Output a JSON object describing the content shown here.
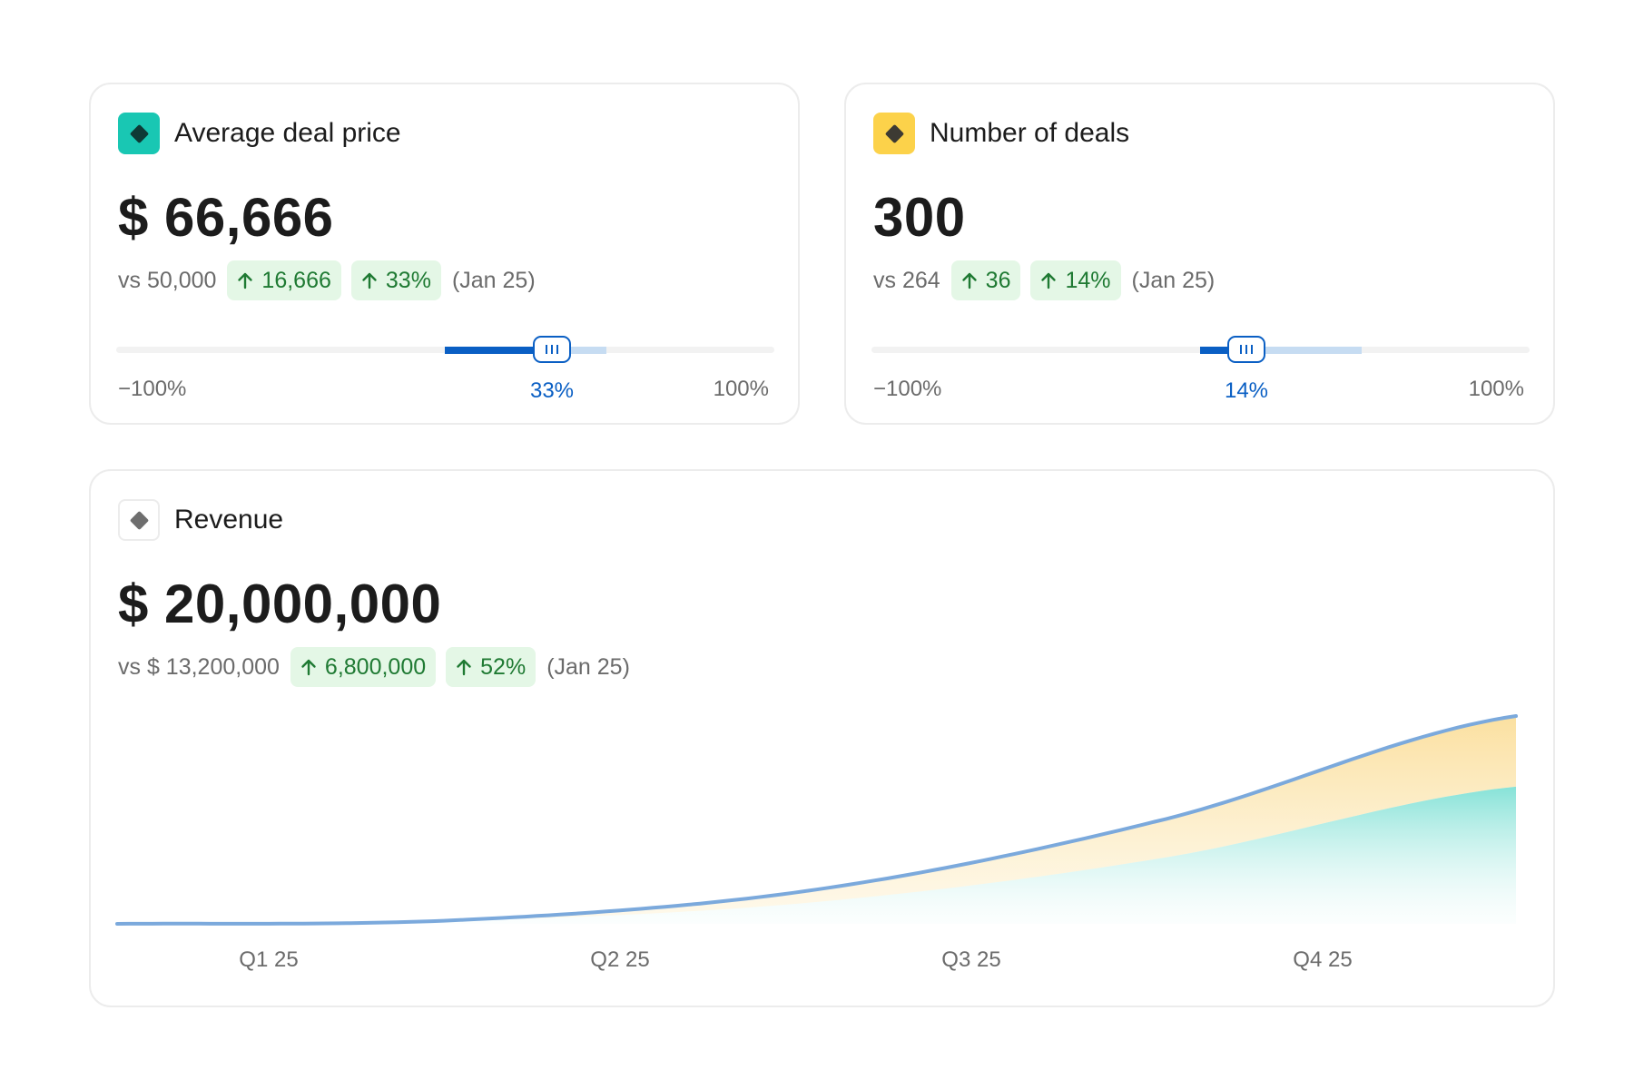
{
  "cards": {
    "avg_deal_price": {
      "title": "Average deal price",
      "icon": "diamond-icon",
      "icon_bg": "#19c7b3",
      "icon_color": "#0e3a36",
      "value": "$ 66,666",
      "compare": "vs 50,000",
      "delta_abs": "16,666",
      "delta_pct": "33%",
      "period": "(Jan 25)",
      "slider": {
        "min_label": "−100%",
        "max_label": "100%",
        "current_label": "33%",
        "value": 0.33,
        "range_from": 0.0,
        "range_to": 0.49
      }
    },
    "number_of_deals": {
      "title": "Number of deals",
      "icon": "diamond-icon",
      "icon_bg": "#fcd24a",
      "icon_color": "#3d3a33",
      "value": "300",
      "compare": "vs 264",
      "delta_abs": "36",
      "delta_pct": "14%",
      "period": "(Jan 25)",
      "slider": {
        "min_label": "−100%",
        "max_label": "100%",
        "current_label": "14%",
        "value": 0.14,
        "range_from": 0.0,
        "range_to": 0.49
      }
    },
    "revenue": {
      "title": "Revenue",
      "icon": "diamond-icon",
      "icon_bg": "#ffffff",
      "icon_color": "#6e6e6e",
      "value": "$ 20,000,000",
      "compare": "vs $ 13,200,000",
      "delta_abs": "6,800,000",
      "delta_pct": "52%",
      "period": "(Jan 25)"
    }
  },
  "colors": {
    "positive_bg": "#e4f7e6",
    "positive_text": "#1f7a33",
    "accent_blue": "#0a5fc4",
    "line_blue": "#7ba9dc",
    "area_yellow": "#fbe3a3",
    "area_teal": "#88e3d8"
  },
  "chart_data": {
    "type": "area",
    "categories": [
      "Q1 25",
      "Q2 25",
      "Q3 25",
      "Q4 25"
    ],
    "y_scale": "hidden",
    "series": [
      {
        "values": [
          0,
          0.3,
          2.1,
          6.4,
          13.2
        ]
      },
      {
        "values": [
          0,
          0.4,
          3.3,
          10.1,
          20.0
        ]
      }
    ],
    "x": [
      0,
      1,
      2,
      3,
      4
    ],
    "grid": false,
    "legend": "none"
  }
}
